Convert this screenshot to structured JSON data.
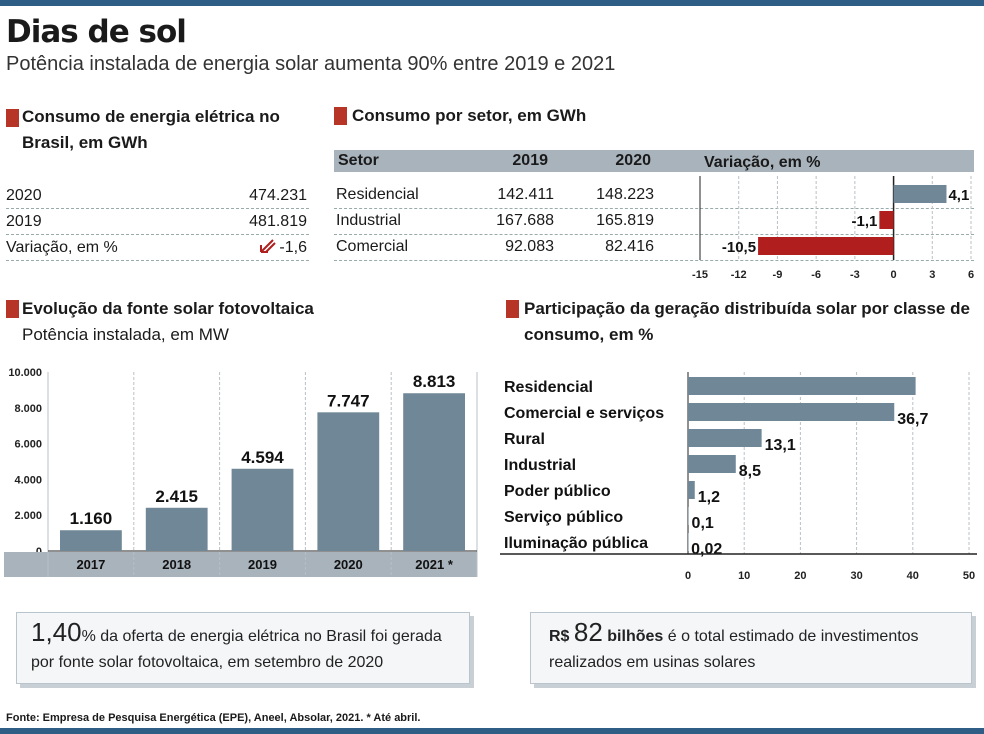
{
  "header": {
    "title": "Dias de sol",
    "subtitle": "Potência instalada de energia solar aumenta 90% entre 2019 e 2021"
  },
  "consumo": {
    "title_line1": "Consumo de energia elétrica no",
    "title_line2": "Brasil, em GWh",
    "rows": [
      {
        "label": "2020",
        "value": "474.231"
      },
      {
        "label": "2019",
        "value": "481.819"
      },
      {
        "label": "Variação, em %",
        "value": "-1,6"
      }
    ],
    "down_icon": "arrow-down-left-icon"
  },
  "setor": {
    "title": "Consumo por setor, em GWh",
    "headers": {
      "setor": "Setor",
      "y2019": "2019",
      "y2020": "2020",
      "variacao": "Variação, em %"
    },
    "rows": [
      {
        "setor": "Residencial",
        "y2019": "142.411",
        "y2020": "148.223",
        "var_label": "4,1"
      },
      {
        "setor": "Industrial",
        "y2019": "167.688",
        "y2020": "165.819",
        "var_label": "-1,1"
      },
      {
        "setor": "Comercial",
        "y2019": "92.083",
        "y2020": "82.416",
        "var_label": "-10,5"
      }
    ]
  },
  "evolucao": {
    "title": "Evolução da fonte solar fotovoltaica",
    "subtitle": "Potência instalada, em MW"
  },
  "participacao": {
    "title_line1": "Participação da geração distribuída solar por classe de",
    "title_line2": "consumo, em %"
  },
  "callouts": {
    "left_big": "1,40",
    "left_text_1": "% da oferta de energia elétrica no Brasil foi gerada",
    "left_text_2": "por fonte solar fotovoltaica, em setembro de 2020",
    "right_prefix": "R$",
    "right_big": "82",
    "right_bold": "bilhões",
    "right_text_1": "é o total estimado de investimentos",
    "right_text_2": "realizados em usinas solares"
  },
  "source": "Fonte: Empresa de Pesquisa Energética (EPE), Aneel, Absolar, 2021. * Até abril.",
  "colors": {
    "bar": "#6f8796",
    "negative": "#b01e1e",
    "accent": "#b73527",
    "header_band": "#a9b3bc",
    "brand": "#2e5e86"
  },
  "chart_data": [
    {
      "type": "bar",
      "orientation": "horizontal",
      "title": "Variação, em %",
      "categories": [
        "Residencial",
        "Industrial",
        "Comercial"
      ],
      "values": [
        4.1,
        -1.1,
        -10.5
      ],
      "value_labels": [
        "4,1",
        "-1,1",
        "-10,5"
      ],
      "xlim": [
        -15,
        6
      ],
      "xticks": [
        -15,
        -12,
        -9,
        -6,
        -3,
        0,
        3,
        6
      ],
      "grid": true
    },
    {
      "type": "bar",
      "title": "Evolução da fonte solar fotovoltaica",
      "subtitle": "Potência instalada, em MW",
      "categories": [
        "2017",
        "2018",
        "2019",
        "2020",
        "2021 *"
      ],
      "values": [
        1160,
        2415,
        4594,
        7747,
        8813
      ],
      "value_labels": [
        "1.160",
        "2.415",
        "4.594",
        "7.747",
        "8.813"
      ],
      "ylim": [
        0,
        10000
      ],
      "yticks": [
        0,
        2000,
        4000,
        6000,
        8000,
        10000
      ],
      "ytick_labels": [
        "0",
        "2.000",
        "4.000",
        "6.000",
        "8.000",
        "10.000"
      ],
      "grid": true
    },
    {
      "type": "bar",
      "orientation": "horizontal",
      "title": "Participação da geração distribuída solar por classe de consumo, em %",
      "categories": [
        "Residencial",
        "Comercial e serviços",
        "Rural",
        "Industrial",
        "Poder público",
        "Serviço público",
        "Iluminação pública"
      ],
      "values": [
        40.5,
        36.7,
        13.1,
        8.5,
        1.2,
        0.1,
        0.02
      ],
      "value_labels": [
        "",
        "36,7",
        "13,1",
        "8,5",
        "1,2",
        "0,1",
        "0,02"
      ],
      "xlim": [
        0,
        50
      ],
      "xticks": [
        0,
        10,
        20,
        30,
        40,
        50
      ],
      "grid": true
    }
  ]
}
